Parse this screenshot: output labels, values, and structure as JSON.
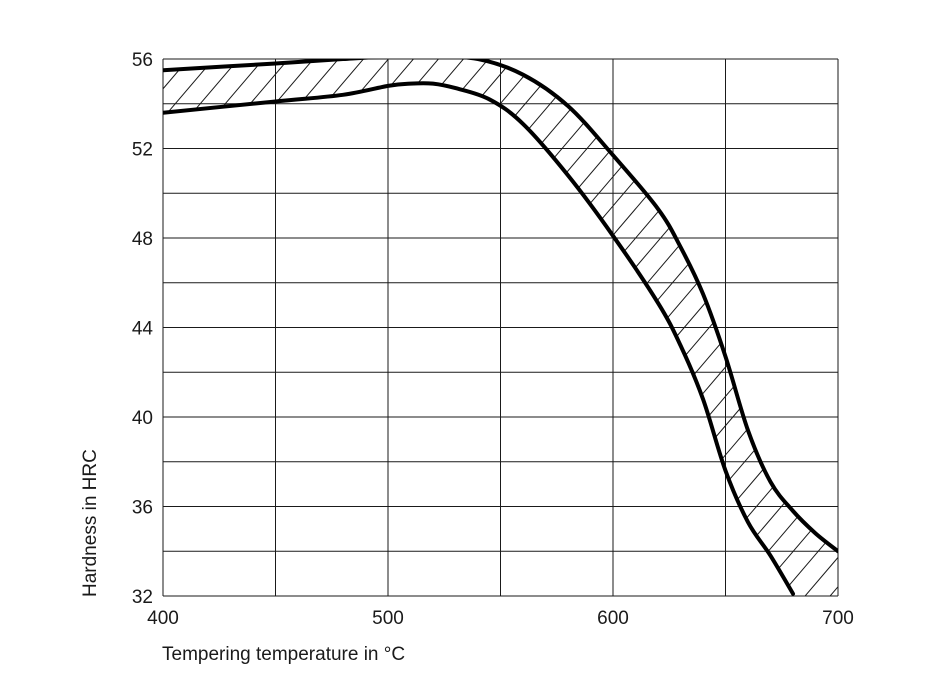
{
  "chart_data": {
    "type": "area",
    "title": "",
    "xlabel": "Tempering temperature in °C",
    "ylabel": "Hardness in HRC",
    "xlim": [
      400,
      700
    ],
    "ylim": [
      32,
      56
    ],
    "x_ticks": [
      400,
      500,
      600,
      700
    ],
    "y_ticks": [
      32,
      36,
      40,
      44,
      48,
      52,
      56
    ],
    "x_grid_step": 50,
    "y_grid_step": 2,
    "grid": true,
    "band_fill": "hatched",
    "series": [
      {
        "name": "upper",
        "x": [
          400,
          450,
          480,
          500,
          520,
          540,
          560,
          580,
          600,
          620,
          630,
          640,
          650,
          660,
          670,
          680,
          690,
          700
        ],
        "y": [
          55.5,
          55.8,
          56.0,
          56.1,
          56.1,
          56.0,
          55.3,
          53.9,
          51.7,
          49.3,
          47.6,
          45.5,
          42.7,
          39.4,
          37.1,
          35.8,
          34.8,
          34.0
        ]
      },
      {
        "name": "lower",
        "x": [
          400,
          450,
          480,
          500,
          510,
          520,
          530,
          545,
          560,
          580,
          600,
          620,
          630,
          640,
          650,
          660,
          670,
          680
        ],
        "y": [
          53.6,
          54.1,
          54.4,
          54.8,
          54.9,
          54.9,
          54.7,
          54.2,
          53.1,
          50.8,
          48.1,
          45.1,
          43.2,
          40.8,
          37.6,
          35.3,
          33.8,
          32.1
        ]
      }
    ]
  }
}
